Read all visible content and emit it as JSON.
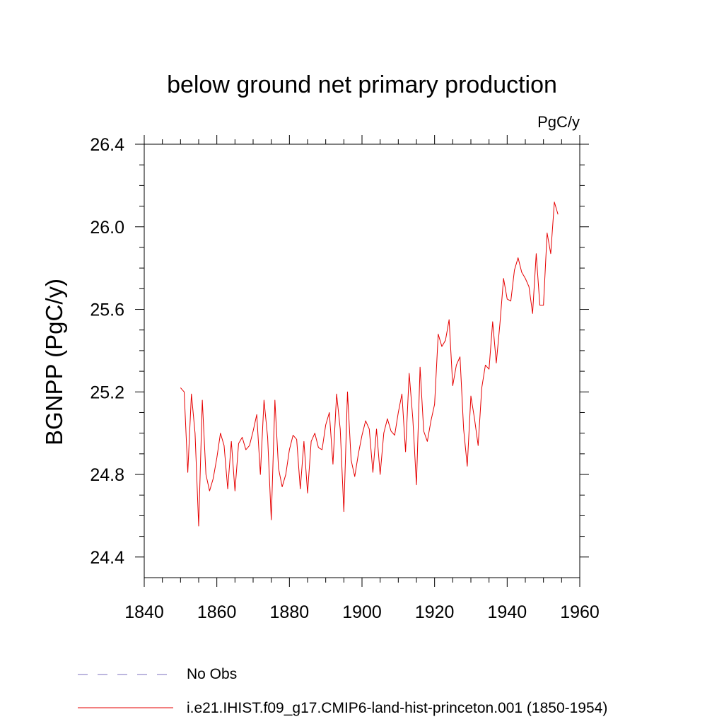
{
  "chart_data": {
    "type": "line",
    "title": "below ground net primary production",
    "units_label": "PgC/y",
    "xlabel": "",
    "ylabel": "BGNPP  (PgC/y)",
    "xlim": [
      1840,
      1960
    ],
    "ylim": [
      24.3,
      26.4
    ],
    "x_ticks": [
      1840,
      1860,
      1880,
      1900,
      1920,
      1940,
      1960
    ],
    "y_ticks": [
      24.4,
      24.8,
      25.2,
      25.6,
      26.0,
      26.4
    ],
    "x_tick_labels": [
      "1840",
      "1860",
      "1880",
      "1900",
      "1920",
      "1940",
      "1960"
    ],
    "y_tick_labels": [
      "24.4",
      "24.8",
      "25.2",
      "25.6",
      "26.0",
      "26.4"
    ],
    "grid": false,
    "legend_position": "bottom",
    "series": [
      {
        "name": "No Obs",
        "color": "#7b6fbf",
        "dash": "dashed",
        "x": [],
        "y": []
      },
      {
        "name": "i.e21.IHIST.f09_g17.CMIP6-land-hist-princeton.001 (1850-1954)",
        "color": "#e60000",
        "dash": "solid",
        "x": [
          1850,
          1851,
          1852,
          1853,
          1854,
          1855,
          1856,
          1857,
          1858,
          1859,
          1860,
          1861,
          1862,
          1863,
          1864,
          1865,
          1866,
          1867,
          1868,
          1869,
          1870,
          1871,
          1872,
          1873,
          1874,
          1875,
          1876,
          1877,
          1878,
          1879,
          1880,
          1881,
          1882,
          1883,
          1884,
          1885,
          1886,
          1887,
          1888,
          1889,
          1890,
          1891,
          1892,
          1893,
          1894,
          1895,
          1896,
          1897,
          1898,
          1899,
          1900,
          1901,
          1902,
          1903,
          1904,
          1905,
          1906,
          1907,
          1908,
          1909,
          1910,
          1911,
          1912,
          1913,
          1914,
          1915,
          1916,
          1917,
          1918,
          1919,
          1920,
          1921,
          1922,
          1923,
          1924,
          1925,
          1926,
          1927,
          1928,
          1929,
          1930,
          1931,
          1932,
          1933,
          1934,
          1935,
          1936,
          1937,
          1938,
          1939,
          1940,
          1941,
          1942,
          1943,
          1944,
          1945,
          1946,
          1947,
          1948,
          1949,
          1950,
          1951,
          1952,
          1953,
          1954
        ],
        "y": [
          25.22,
          25.2,
          24.81,
          25.19,
          25.0,
          24.55,
          25.16,
          24.8,
          24.72,
          24.78,
          24.88,
          25.0,
          24.94,
          24.73,
          24.96,
          24.72,
          24.95,
          24.98,
          24.92,
          24.94,
          25.01,
          25.09,
          24.8,
          25.16,
          24.98,
          24.58,
          25.16,
          24.83,
          24.74,
          24.8,
          24.92,
          24.99,
          24.97,
          24.73,
          24.96,
          24.71,
          24.96,
          25.0,
          24.93,
          24.92,
          25.04,
          25.1,
          24.85,
          25.19,
          25.02,
          24.62,
          25.2,
          24.87,
          24.79,
          24.9,
          24.99,
          25.06,
          25.02,
          24.81,
          25.02,
          24.8,
          25.0,
          25.07,
          25.01,
          24.99,
          25.1,
          25.19,
          24.91,
          25.29,
          25.07,
          24.75,
          25.32,
          25.01,
          24.96,
          25.06,
          25.14,
          25.48,
          25.42,
          25.45,
          25.55,
          25.23,
          25.33,
          25.37,
          25.02,
          24.84,
          25.18,
          25.07,
          24.94,
          25.22,
          25.33,
          25.31,
          25.54,
          25.34,
          25.53,
          25.75,
          25.65,
          25.64,
          25.79,
          25.85,
          25.78,
          25.75,
          25.71,
          25.58,
          25.87,
          25.62,
          25.62,
          25.97,
          25.87,
          26.12,
          26.06
        ]
      }
    ]
  }
}
